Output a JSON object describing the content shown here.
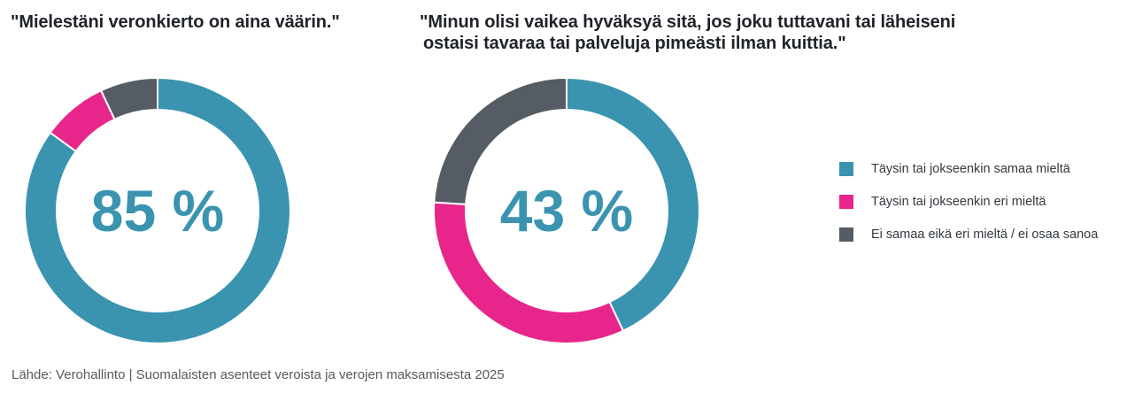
{
  "colors": {
    "agree": "#3a94b0",
    "disagree": "#e8258a",
    "neutral": "#555c63",
    "title": "#1f2329",
    "footer": "#555b61"
  },
  "chart_data": [
    {
      "type": "pie",
      "variant": "donut",
      "title": "\"Mielestäni veronkierto on aina väärin.\"",
      "center_label": "85 %",
      "categories": [
        "Täysin tai jokseenkin samaa mieltä",
        "Täysin tai jokseenkin eri mieltä",
        "Ei samaa eikä eri mieltä / ei osaa sanoa"
      ],
      "values": [
        85,
        8,
        7
      ],
      "unit": "%"
    },
    {
      "type": "pie",
      "variant": "donut",
      "title": "\"Minun olisi vaikea hyväksyä sitä, jos joku tuttavani tai läheiseni ostaisi tavaraa tai palveluja pimeästi ilman kuittia.\"",
      "center_label": "43 %",
      "categories": [
        "Täysin tai jokseenkin samaa mieltä",
        "Täysin tai jokseenkin eri mieltä",
        "Ei samaa eikä eri mieltä / ei osaa sanoa"
      ],
      "values": [
        43,
        33,
        24
      ],
      "unit": "%"
    }
  ],
  "charts": {
    "left": {
      "title": "\"Mielestäni veronkierto on aina väärin.\"",
      "center_label": "85 %"
    },
    "right": {
      "title_line1": "\"Minun olisi vaikea hyväksyä sitä, jos joku tuttavani tai läheiseni",
      "title_line2": "ostaisi tavaraa tai palveluja pimeästi ilman kuittia.\"",
      "center_label": "43 %"
    }
  },
  "legend": {
    "position": "right",
    "items": [
      {
        "label": "Täysin tai jokseenkin samaa mieltä",
        "color": "#3a94b0"
      },
      {
        "label": "Täysin tai jokseenkin eri mieltä",
        "color": "#e8258a"
      },
      {
        "label": "Ei samaa eikä eri mieltä / ei osaa sanoa",
        "color": "#555c63"
      }
    ]
  },
  "footer": {
    "source": "Lähde: Verohallinto | Suomalaisten asenteet veroista ja verojen maksamisesta 2025"
  }
}
